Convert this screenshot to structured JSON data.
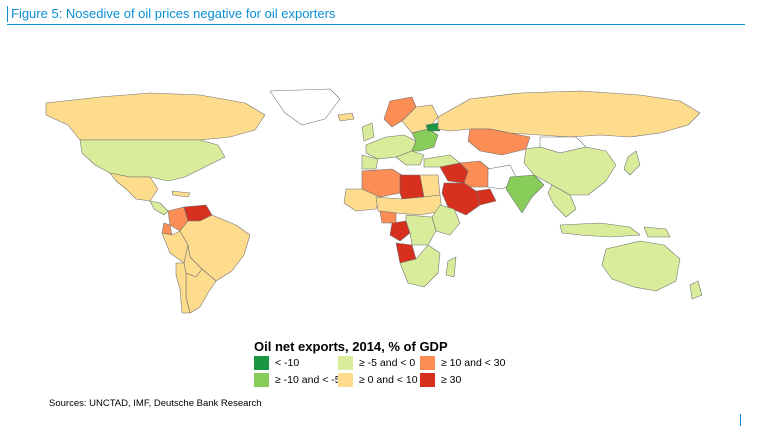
{
  "figure": {
    "title": "Figure 5: Nosedive of oil prices negative for oil exporters"
  },
  "legend": {
    "title": "Oil net exports, 2014, % of GDP",
    "items": [
      {
        "id": "lt-m10",
        "label": "< -10",
        "color": "#1a9641"
      },
      {
        "id": "m10-m5",
        "label": "≥ -10 and < -5",
        "color": "#88cc5a"
      },
      {
        "id": "m5-0",
        "label": "≥ -5 and < 0",
        "color": "#d8ec9b"
      },
      {
        "id": "0-10",
        "label": "≥ 0 and < 10",
        "color": "#fddc8e"
      },
      {
        "id": "10-30",
        "label": "≥ 10 and < 30",
        "color": "#fb8d55"
      },
      {
        "id": "ge30",
        "label": "≥ 30",
        "color": "#d7301f"
      }
    ],
    "no_data_color": "#ffffff"
  },
  "sources": "Sources: UNCTAD, IMF, Deutsche Bank Research"
}
